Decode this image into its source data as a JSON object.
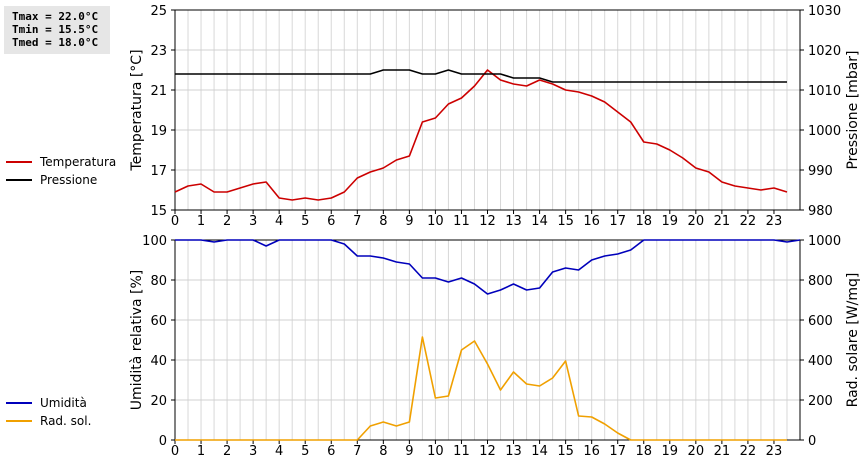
{
  "stats": {
    "tmax": "Tmax = 22.0°C",
    "tmin": "Tmin = 15.5°C",
    "tmed": "Tmed = 18.0°C"
  },
  "legend_top": [
    {
      "label": "Temperatura",
      "color": "#cc0000"
    },
    {
      "label": "Pressione",
      "color": "#000000"
    }
  ],
  "legend_bottom": [
    {
      "label": "Umidità",
      "color": "#0000bb"
    },
    {
      "label": "Rad. sol.",
      "color": "#f0a000"
    }
  ],
  "chart_data": [
    {
      "type": "line",
      "ylabel": "Temperatura [°C]",
      "y2label": "Pressione [mbar]",
      "xlim": [
        0,
        24
      ],
      "ylim": [
        15,
        25
      ],
      "y2lim": [
        980,
        1030
      ],
      "yticks": [
        15,
        17,
        19,
        21,
        23,
        25
      ],
      "y2ticks": [
        980,
        990,
        1000,
        1010,
        1020,
        1030
      ],
      "xticks": [
        0,
        1,
        2,
        3,
        4,
        5,
        6,
        7,
        8,
        9,
        10,
        11,
        12,
        13,
        14,
        15,
        16,
        17,
        18,
        19,
        20,
        21,
        22,
        23
      ],
      "grid": true,
      "series": [
        {
          "name": "Temperatura",
          "axis": "left",
          "color": "#cc0000",
          "points": [
            [
              0,
              15.9
            ],
            [
              0.5,
              16.2
            ],
            [
              1,
              16.3
            ],
            [
              1.5,
              15.9
            ],
            [
              2,
              15.9
            ],
            [
              2.5,
              16.1
            ],
            [
              3,
              16.3
            ],
            [
              3.5,
              16.4
            ],
            [
              4,
              15.6
            ],
            [
              4.5,
              15.5
            ],
            [
              5,
              15.6
            ],
            [
              5.5,
              15.5
            ],
            [
              6,
              15.6
            ],
            [
              6.5,
              15.9
            ],
            [
              7,
              16.6
            ],
            [
              7.5,
              16.9
            ],
            [
              8,
              17.1
            ],
            [
              8.5,
              17.5
            ],
            [
              9,
              17.7
            ],
            [
              9.5,
              19.4
            ],
            [
              10,
              19.6
            ],
            [
              10.5,
              20.3
            ],
            [
              11,
              20.6
            ],
            [
              11.5,
              21.2
            ],
            [
              12,
              22.0
            ],
            [
              12.5,
              21.5
            ],
            [
              13,
              21.3
            ],
            [
              13.5,
              21.2
            ],
            [
              14,
              21.5
            ],
            [
              14.5,
              21.3
            ],
            [
              15,
              21.0
            ],
            [
              15.5,
              20.9
            ],
            [
              16,
              20.7
            ],
            [
              16.5,
              20.4
            ],
            [
              17,
              19.9
            ],
            [
              17.5,
              19.4
            ],
            [
              18,
              18.4
            ],
            [
              18.5,
              18.3
            ],
            [
              19,
              18.0
            ],
            [
              19.5,
              17.6
            ],
            [
              20,
              17.1
            ],
            [
              20.5,
              16.9
            ],
            [
              21,
              16.4
            ],
            [
              21.5,
              16.2
            ],
            [
              22,
              16.1
            ],
            [
              22.5,
              16.0
            ],
            [
              23,
              16.1
            ],
            [
              23.5,
              15.9
            ]
          ]
        },
        {
          "name": "Pressione",
          "axis": "right",
          "color": "#000000",
          "points": [
            [
              0,
              1014
            ],
            [
              7.5,
              1014
            ],
            [
              8,
              1015
            ],
            [
              9,
              1015
            ],
            [
              9.5,
              1014
            ],
            [
              10,
              1014
            ],
            [
              10.5,
              1015
            ],
            [
              11,
              1014
            ],
            [
              12.5,
              1014
            ],
            [
              13,
              1013
            ],
            [
              14,
              1013
            ],
            [
              14.5,
              1012
            ],
            [
              23.5,
              1012
            ]
          ]
        }
      ]
    },
    {
      "type": "line",
      "ylabel": "Umidità relativa [%]",
      "y2label": "Rad. solare [W/mq]",
      "xlim": [
        0,
        24
      ],
      "ylim": [
        0,
        100
      ],
      "y2lim": [
        0,
        1000
      ],
      "yticks": [
        0,
        20,
        40,
        60,
        80,
        100
      ],
      "y2ticks": [
        0,
        200,
        400,
        600,
        800,
        1000
      ],
      "xticks": [
        0,
        1,
        2,
        3,
        4,
        5,
        6,
        7,
        8,
        9,
        10,
        11,
        12,
        13,
        14,
        15,
        16,
        17,
        18,
        19,
        20,
        21,
        22,
        23
      ],
      "grid": true,
      "series": [
        {
          "name": "Umidità",
          "axis": "left",
          "color": "#0000bb",
          "points": [
            [
              0,
              100
            ],
            [
              1,
              100
            ],
            [
              1.5,
              99
            ],
            [
              2,
              100
            ],
            [
              3,
              100
            ],
            [
              3.5,
              97
            ],
            [
              4,
              100
            ],
            [
              6,
              100
            ],
            [
              6.5,
              98
            ],
            [
              7,
              92
            ],
            [
              7.5,
              92
            ],
            [
              8,
              91
            ],
            [
              8.5,
              89
            ],
            [
              9,
              88
            ],
            [
              9.5,
              81
            ],
            [
              10,
              81
            ],
            [
              10.5,
              79
            ],
            [
              11,
              81
            ],
            [
              11.5,
              78
            ],
            [
              12,
              73
            ],
            [
              12.5,
              75
            ],
            [
              13,
              78
            ],
            [
              13.5,
              75
            ],
            [
              14,
              76
            ],
            [
              14.5,
              84
            ],
            [
              15,
              86
            ],
            [
              15.5,
              85
            ],
            [
              16,
              90
            ],
            [
              16.5,
              92
            ],
            [
              17,
              93
            ],
            [
              17.5,
              95
            ],
            [
              18,
              100
            ],
            [
              23,
              100
            ],
            [
              23.5,
              99
            ],
            [
              24,
              100
            ]
          ]
        },
        {
          "name": "Rad. sol.",
          "axis": "right",
          "color": "#f0a000",
          "points": [
            [
              0,
              0
            ],
            [
              7,
              0
            ],
            [
              7.5,
              70
            ],
            [
              8,
              90
            ],
            [
              8.5,
              70
            ],
            [
              9,
              90
            ],
            [
              9.5,
              515
            ],
            [
              10,
              210
            ],
            [
              10.5,
              220
            ],
            [
              11,
              450
            ],
            [
              11.5,
              495
            ],
            [
              12,
              380
            ],
            [
              12.5,
              250
            ],
            [
              13,
              340
            ],
            [
              13.5,
              280
            ],
            [
              14,
              270
            ],
            [
              14.5,
              310
            ],
            [
              15,
              395
            ],
            [
              15.5,
              120
            ],
            [
              16,
              115
            ],
            [
              16.5,
              80
            ],
            [
              17,
              35
            ],
            [
              17.5,
              0
            ],
            [
              23.5,
              0
            ]
          ]
        }
      ]
    }
  ]
}
